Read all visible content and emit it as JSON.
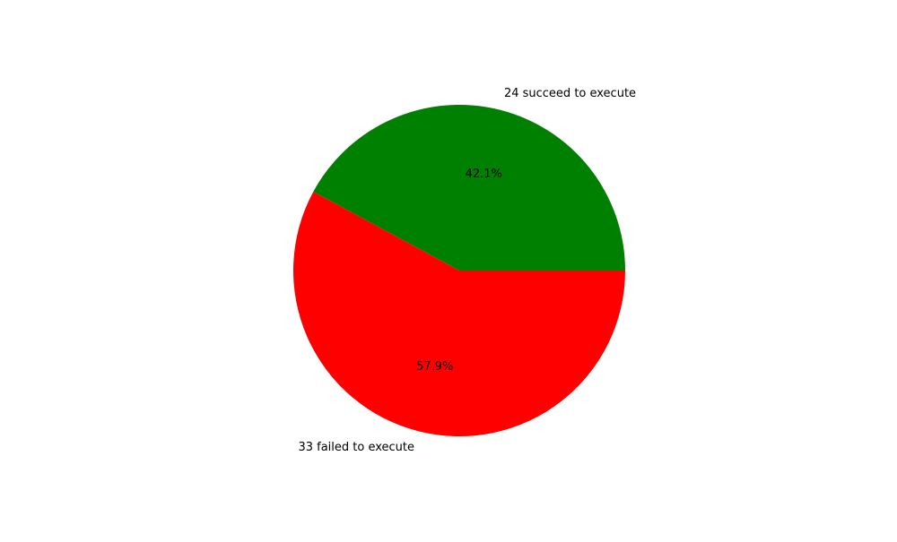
{
  "chart_data": {
    "type": "pie",
    "slices": [
      {
        "label": "24 succeed to execute",
        "value": 24,
        "percent_label": "42.1%",
        "color": "#008000"
      },
      {
        "label": "33 failed to execute",
        "value": 33,
        "percent_label": "57.9%",
        "color": "#ff0000"
      }
    ]
  }
}
